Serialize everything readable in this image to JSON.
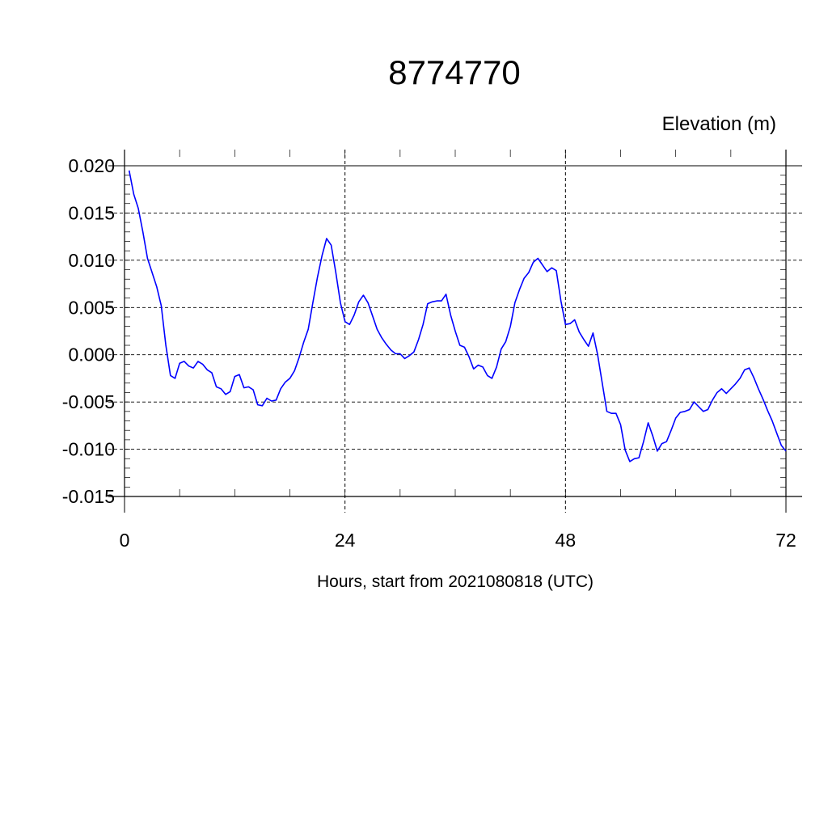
{
  "chart_data": {
    "type": "line",
    "title": "8774770",
    "ylabel": "Elevation (m)",
    "xlabel": "Hours, start from 2021080818 (UTC)",
    "xlim": [
      0,
      72
    ],
    "ylim": [
      -0.015,
      0.02
    ],
    "x_ticks": [
      0,
      24,
      48,
      72
    ],
    "x_tick_labels": [
      "0",
      "24",
      "48",
      "72"
    ],
    "y_ticks": [
      -0.015,
      -0.01,
      -0.005,
      0.0,
      0.005,
      0.01,
      0.015,
      0.02
    ],
    "y_tick_labels": [
      "-0.015",
      "-0.010",
      "-0.005",
      "0.000",
      "0.005",
      "0.010",
      "0.015",
      "0.020"
    ],
    "grid": true,
    "line_color": "#0000ff",
    "series": [
      {
        "x": [
          0.5,
          1,
          1.5,
          2,
          2.5,
          3,
          3.5,
          4,
          4.5,
          5,
          5.5,
          6,
          6.5,
          7,
          7.5,
          8,
          8.5,
          9,
          9.5,
          10,
          10.5,
          11,
          11.5,
          12,
          12.5,
          13,
          13.5,
          14,
          14.5,
          15,
          15.5,
          16,
          16.5,
          17,
          17.5,
          18,
          18.5,
          19,
          19.5,
          20,
          20.5,
          21,
          21.5,
          22,
          22.5,
          23,
          23.5,
          24,
          24.5,
          25,
          25.5,
          26,
          26.5,
          27,
          27.5,
          28,
          28.5,
          29,
          29.5,
          30,
          30.5,
          31,
          31.5,
          32,
          32.5,
          33,
          33.5,
          34,
          34.5,
          35,
          35.5,
          36,
          36.5,
          37,
          37.5,
          38,
          38.5,
          39,
          39.5,
          40,
          40.5,
          41,
          41.5,
          42,
          42.5,
          43,
          43.5,
          44,
          44.5,
          45,
          45.5,
          46,
          46.5,
          47,
          47.5,
          48,
          48.5,
          49,
          49.5,
          50,
          50.5,
          51,
          51.5,
          52,
          52.5,
          53,
          53.5,
          54,
          54.5,
          55,
          55.5,
          56,
          56.5,
          57,
          57.5,
          58,
          58.5,
          59,
          59.5,
          60,
          60.5,
          61,
          61.5,
          62,
          62.5,
          63,
          63.5,
          64,
          64.5,
          65,
          65.5,
          66,
          66.5,
          67,
          67.5,
          68,
          68.5,
          69,
          69.5,
          70,
          70.5,
          71,
          71.5,
          72
        ],
        "values": [
          0.0195,
          0.017,
          0.0155,
          0.013,
          0.0102,
          0.0087,
          0.0072,
          0.0052,
          0.001,
          -0.0022,
          -0.0025,
          -0.0009,
          -0.0007,
          -0.0012,
          -0.0014,
          -0.0007,
          -0.001,
          -0.0016,
          -0.0019,
          -0.0034,
          -0.0036,
          -0.0042,
          -0.0039,
          -0.0023,
          -0.0021,
          -0.0035,
          -0.0034,
          -0.0037,
          -0.0053,
          -0.0054,
          -0.0046,
          -0.0049,
          -0.0048,
          -0.0036,
          -0.0029,
          -0.0025,
          -0.0017,
          -0.0003,
          0.0013,
          0.0027,
          0.0055,
          0.0082,
          0.0105,
          0.0123,
          0.0116,
          0.0087,
          0.0055,
          0.0035,
          0.0032,
          0.0042,
          0.0056,
          0.0063,
          0.0055,
          0.0041,
          0.0027,
          0.0018,
          0.0011,
          0.0005,
          0.0001,
          0.0001,
          -0.0004,
          -0.0001,
          0.0003,
          0.0016,
          0.0032,
          0.0054,
          0.0056,
          0.0057,
          0.0057,
          0.0064,
          0.0042,
          0.0025,
          0.001,
          0.0008,
          -0.0002,
          -0.0015,
          -0.0011,
          -0.0013,
          -0.0022,
          -0.0025,
          -0.0013,
          0.0006,
          0.0014,
          0.003,
          0.0055,
          0.0069,
          0.0081,
          0.0087,
          0.0098,
          0.0102,
          0.0095,
          0.0088,
          0.0092,
          0.0089,
          0.0057,
          0.0032,
          0.0033,
          0.0037,
          0.0024,
          0.0016,
          0.0009,
          0.0023,
          0.0,
          -0.003,
          -0.006,
          -0.0062,
          -0.0062,
          -0.0074,
          -0.0101,
          -0.0113,
          -0.011,
          -0.0109,
          -0.0092,
          -0.0072,
          -0.0086,
          -0.0102,
          -0.0094,
          -0.0092,
          -0.008,
          -0.0067,
          -0.0061,
          -0.006,
          -0.0058,
          -0.005,
          -0.0055,
          -0.006,
          -0.0058,
          -0.0048,
          -0.004,
          -0.0036,
          -0.0041,
          -0.0036,
          -0.0031,
          -0.0025,
          -0.0016,
          -0.0014,
          -0.0024,
          -0.0036,
          -0.0047,
          -0.0059,
          -0.007,
          -0.0083,
          -0.0096,
          -0.0102
        ]
      }
    ]
  }
}
